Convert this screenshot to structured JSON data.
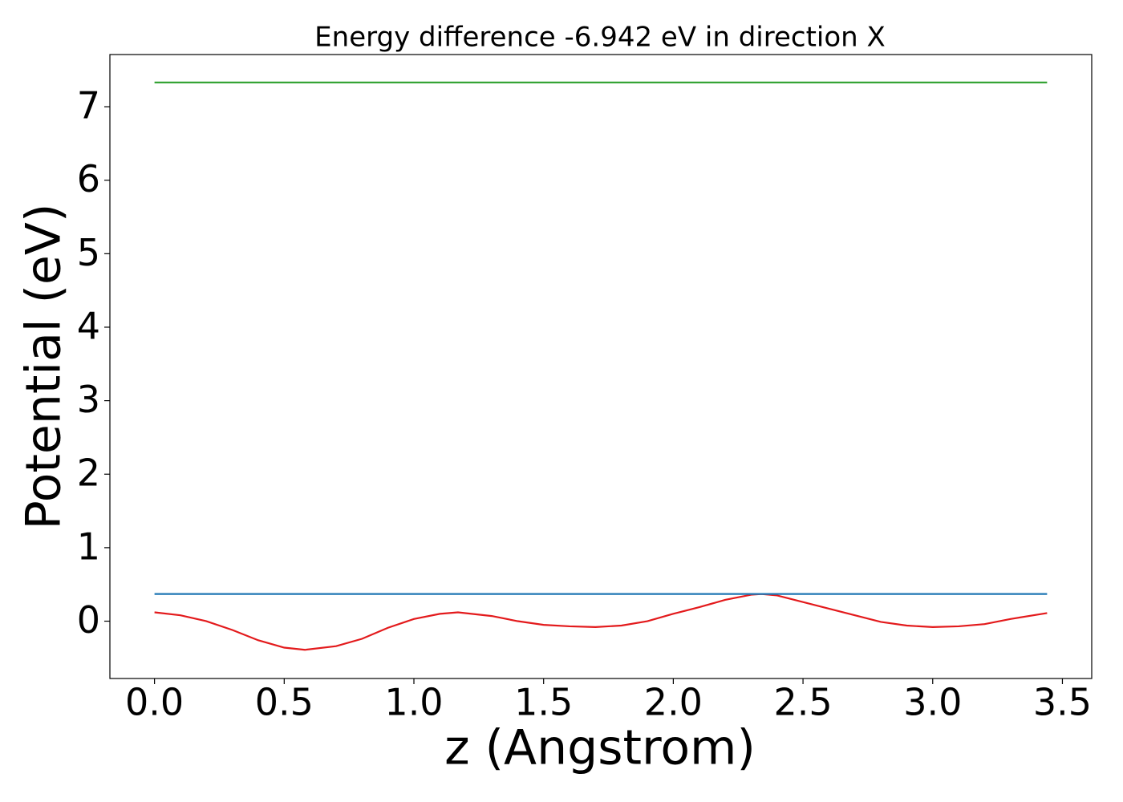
{
  "chart_data": {
    "type": "line",
    "title": "Energy difference -6.942 eV in direction X",
    "xlabel": "z (Angstrom)",
    "ylabel": "Potential (eV)",
    "xlim": [
      -0.172,
      3.613
    ],
    "ylim": [
      -0.78,
      7.71
    ],
    "xticks": [
      {
        "value": 0,
        "label": "0.0"
      },
      0.5,
      {
        "value": 1,
        "label": "1.0"
      },
      1.5,
      {
        "value": 2,
        "label": "2.0"
      },
      2.5,
      {
        "value": 3,
        "label": "3.0"
      },
      3.5
    ],
    "yticks": [
      0,
      1,
      2,
      3,
      4,
      5,
      6,
      7
    ],
    "grid": false,
    "series": [
      {
        "color": "#e31a1c",
        "x": [
          0,
          0.1,
          0.2,
          0.3,
          0.4,
          0.5,
          0.58,
          0.7,
          0.8,
          0.9,
          1.0,
          1.1,
          1.17,
          1.3,
          1.4,
          1.5,
          1.6,
          1.7,
          1.8,
          1.9,
          2.0,
          2.1,
          2.2,
          2.3,
          2.34,
          2.4,
          2.5,
          2.6,
          2.7,
          2.8,
          2.9,
          3.0,
          3.1,
          3.2,
          3.3,
          3.441
        ],
        "values": [
          0.12,
          0.08,
          0.0,
          -0.12,
          -0.26,
          -0.36,
          -0.39,
          -0.34,
          -0.24,
          -0.09,
          0.03,
          0.1,
          0.12,
          0.07,
          0.0,
          -0.05,
          -0.07,
          -0.08,
          -0.06,
          0.0,
          0.1,
          0.19,
          0.29,
          0.36,
          0.37,
          0.35,
          0.26,
          0.17,
          0.08,
          -0.01,
          -0.06,
          -0.08,
          -0.07,
          -0.04,
          0.03,
          0.11
        ]
      },
      {
        "color": "#1f77b4",
        "x": [
          0,
          3.441
        ],
        "values": [
          0.37,
          0.37
        ]
      },
      {
        "color": "#2ca02c",
        "x": [
          0,
          3.441
        ],
        "values": [
          7.33,
          7.33
        ]
      }
    ]
  }
}
